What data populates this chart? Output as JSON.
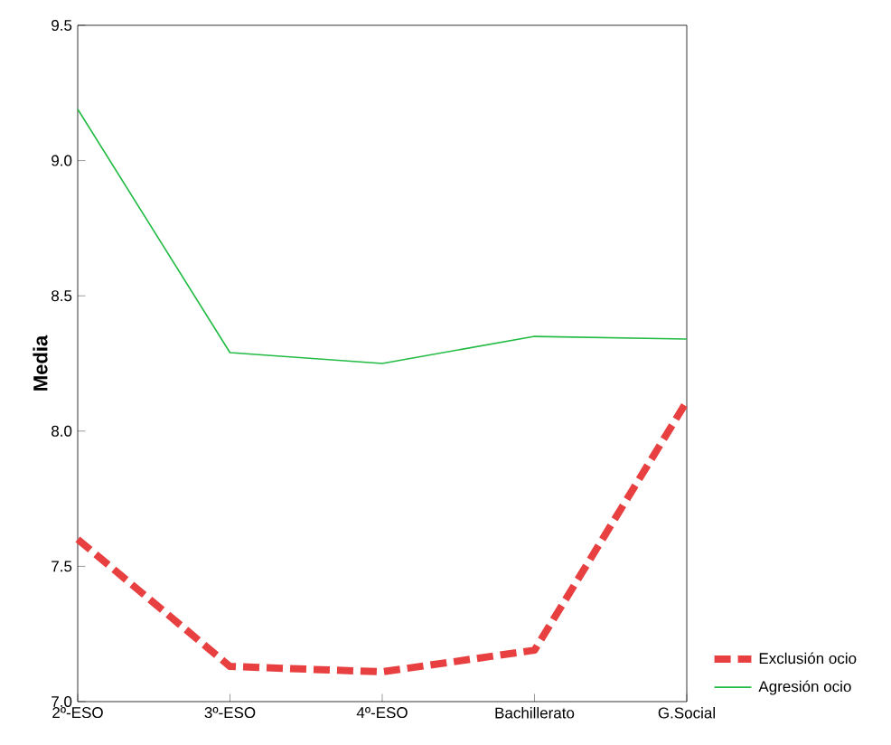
{
  "chart_data": {
    "type": "line",
    "ylabel": "Media",
    "categories": [
      "2º-ESO",
      "3º-ESO",
      "4º-ESO",
      "Bachillerato",
      "G.Social"
    ],
    "series": [
      {
        "name": "Exclusión ocio",
        "color": "#e84040",
        "line_style": "dashed",
        "values": [
          7.6,
          7.13,
          7.11,
          7.19,
          8.11
        ]
      },
      {
        "name": "Agresión ocio",
        "color": "#22bb44",
        "line_style": "solid",
        "values": [
          9.19,
          8.29,
          8.25,
          8.35,
          8.34
        ]
      }
    ],
    "ylim": [
      7.0,
      9.5
    ],
    "yticks": [
      {
        "value": 7,
        "label": "7.0"
      },
      7.5,
      {
        "value": 8,
        "label": "8.0"
      },
      8.5,
      {
        "value": 9,
        "label": "9.0"
      },
      9.5
    ],
    "legend": "bottom right",
    "grid": false,
    "marker": "none"
  }
}
